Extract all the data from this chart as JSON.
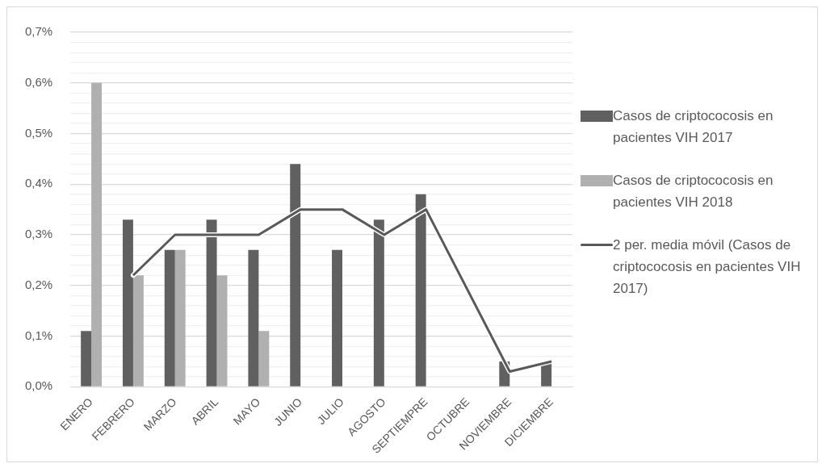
{
  "chart_data": {
    "type": "bar",
    "categories": [
      "ENERO",
      "FEBRERO",
      "MARZO",
      "ABRIL",
      "MAYO",
      "JUNIO",
      "JULIO",
      "AGOSTO",
      "SEPTIEMPRE",
      "OCTUBRE",
      "NOVIEMBRE",
      "DICIEMBRE"
    ],
    "series": [
      {
        "name": "Casos de criptococosis en pacientes VIH 2017",
        "color": "#606060",
        "values": [
          0.11,
          0.33,
          0.27,
          0.33,
          0.27,
          0.44,
          0.27,
          0.33,
          0.38,
          null,
          0.05,
          0.05
        ]
      },
      {
        "name": "Casos de criptococosis en pacientes VIH 2018",
        "color": "#b0b0b0",
        "values": [
          0.6,
          0.22,
          0.27,
          0.22,
          0.11,
          null,
          null,
          null,
          null,
          null,
          null,
          null
        ]
      },
      {
        "name": "2 per. media móvil (Casos de criptococosis en pacientes VIH 2017)",
        "type": "line",
        "color": "#595959",
        "values": [
          null,
          0.22,
          0.3,
          0.3,
          0.3,
          0.35,
          0.35,
          0.3,
          0.35,
          null,
          0.03,
          0.05
        ]
      }
    ],
    "ylim": [
      0,
      0.7
    ],
    "yticks": [
      {
        "value": 0,
        "label": "0,0%"
      },
      {
        "value": 0.02,
        "label": null
      },
      {
        "value": 0.04,
        "label": null
      },
      {
        "value": 0.06,
        "label": null
      },
      {
        "value": 0.08,
        "label": null
      },
      {
        "value": 0.1,
        "label": "0,1%"
      },
      {
        "value": 0.12,
        "label": null
      },
      {
        "value": 0.14,
        "label": null
      },
      {
        "value": 0.16,
        "label": null
      },
      {
        "value": 0.18,
        "label": null
      },
      {
        "value": 0.2,
        "label": "0,2%"
      },
      {
        "value": 0.22,
        "label": null
      },
      {
        "value": 0.24,
        "label": null
      },
      {
        "value": 0.26,
        "label": null
      },
      {
        "value": 0.28,
        "label": null
      },
      {
        "value": 0.3,
        "label": "0,3%"
      },
      {
        "value": 0.32,
        "label": null
      },
      {
        "value": 0.34,
        "label": null
      },
      {
        "value": 0.36,
        "label": null
      },
      {
        "value": 0.38,
        "label": null
      },
      {
        "value": 0.4,
        "label": "0,4%"
      },
      {
        "value": 0.42,
        "label": null
      },
      {
        "value": 0.44,
        "label": null
      },
      {
        "value": 0.46,
        "label": null
      },
      {
        "value": 0.48,
        "label": null
      },
      {
        "value": 0.5,
        "label": "0,5%"
      },
      {
        "value": 0.52,
        "label": null
      },
      {
        "value": 0.54,
        "label": null
      },
      {
        "value": 0.56,
        "label": null
      },
      {
        "value": 0.58,
        "label": null
      },
      {
        "value": 0.6,
        "label": "0,6%"
      },
      {
        "value": 0.62,
        "label": null
      },
      {
        "value": 0.64,
        "label": null
      },
      {
        "value": 0.66,
        "label": null
      },
      {
        "value": 0.68,
        "label": null
      },
      {
        "value": 0.7,
        "label": "0,7%"
      }
    ],
    "grid": "y",
    "legend": "right"
  }
}
